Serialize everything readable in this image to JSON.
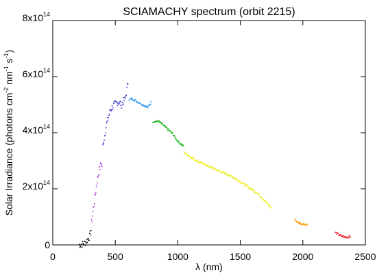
{
  "chart_data": {
    "type": "scatter",
    "title": "SCIAMACHY spectrum (orbit 2215)",
    "xlabel": "λ (nm)",
    "ylabel_parts": [
      "Solar Irradiance (photons cm",
      "-2",
      " nm",
      "-1",
      " s",
      "-1",
      ")"
    ],
    "xlim": [
      0,
      2500
    ],
    "ylim": [
      0,
      800000000000000.0
    ],
    "x_ticks": [
      0,
      500,
      1000,
      1500,
      2000,
      2500
    ],
    "x_tick_labels": [
      "0",
      "500",
      "1000",
      "1500",
      "2000",
      "2500"
    ],
    "y_ticks": [
      {
        "base": "0",
        "exp": ""
      },
      {
        "base": "2x10",
        "exp": "14"
      },
      {
        "base": "4x10",
        "exp": "14"
      },
      {
        "base": "6x10",
        "exp": "14"
      },
      {
        "base": "8x10",
        "exp": "14"
      }
    ],
    "grid": false,
    "series": [
      {
        "color": "#000000",
        "x": [
          210,
          230,
          250,
          265,
          280,
          295,
          310
        ],
        "y": [
          0.0,
          0.02,
          0.05,
          0.1,
          0.2,
          0.3,
          0.6
        ]
      },
      {
        "color": "#aa33dd",
        "x": [
          310,
          325,
          340,
          355,
          370,
          385,
          395
        ],
        "y": [
          0.8,
          1.3,
          1.8,
          2.3,
          2.6,
          2.9,
          2.8
        ]
      },
      {
        "color": "#3333cc",
        "x": [
          400,
          430,
          460,
          490,
          520,
          550,
          580,
          605
        ],
        "y": [
          3.5,
          4.3,
          4.8,
          5.0,
          5.1,
          5.0,
          5.2,
          5.9
        ]
      },
      {
        "color": "#3399ee",
        "x": [
          610,
          640,
          680,
          720,
          760,
          790
        ],
        "y": [
          5.2,
          5.2,
          5.1,
          5.0,
          4.9,
          5.1
        ]
      },
      {
        "color": "#22bb22",
        "x": [
          800,
          850,
          900,
          950,
          1000,
          1050
        ],
        "y": [
          4.4,
          4.4,
          4.2,
          4.0,
          3.7,
          3.5
        ]
      },
      {
        "color": "#eeee22",
        "x": [
          1050,
          1150,
          1250,
          1350,
          1450,
          1550,
          1650,
          1750
        ],
        "y": [
          3.3,
          3.0,
          2.8,
          2.6,
          2.4,
          2.1,
          1.8,
          1.3
        ]
      },
      {
        "color": "#ff9900",
        "x": [
          1935,
          1960,
          1990,
          2015,
          2040
        ],
        "y": [
          0.9,
          0.8,
          0.75,
          0.75,
          0.7
        ]
      },
      {
        "color": "#ee2222",
        "x": [
          2260,
          2290,
          2320,
          2350,
          2385
        ],
        "y": [
          0.45,
          0.35,
          0.3,
          0.28,
          0.3
        ]
      }
    ],
    "y_unit_note": "y values in units of 1e14"
  }
}
